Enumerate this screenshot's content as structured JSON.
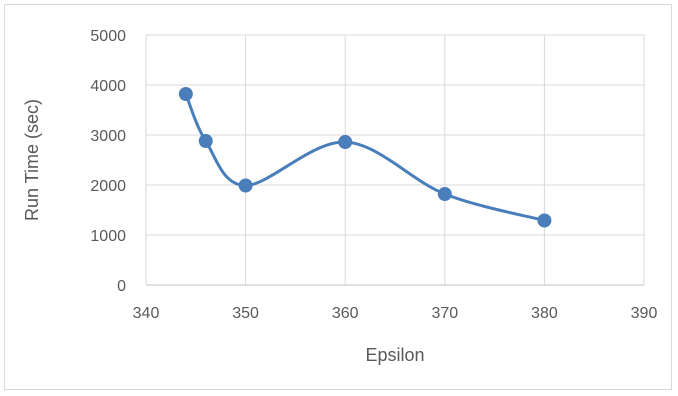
{
  "chart_data": {
    "type": "scatter",
    "title": "",
    "xlabel": "Epsilon",
    "ylabel": "Run Time (sec)",
    "xlim": [
      340,
      390
    ],
    "ylim": [
      0,
      5000
    ],
    "x_ticks": [
      "340",
      "350",
      "360",
      "370",
      "380",
      "390"
    ],
    "y_ticks": [
      "0",
      "1000",
      "2000",
      "3000",
      "4000",
      "5000"
    ],
    "grid": true,
    "smoothed_line": true,
    "series": [
      {
        "x": [
          344,
          346,
          350,
          360,
          370,
          380
        ],
        "y": [
          3820,
          2880,
          1990,
          2860,
          1820,
          1290
        ],
        "color": "#4a7ebb"
      }
    ]
  }
}
